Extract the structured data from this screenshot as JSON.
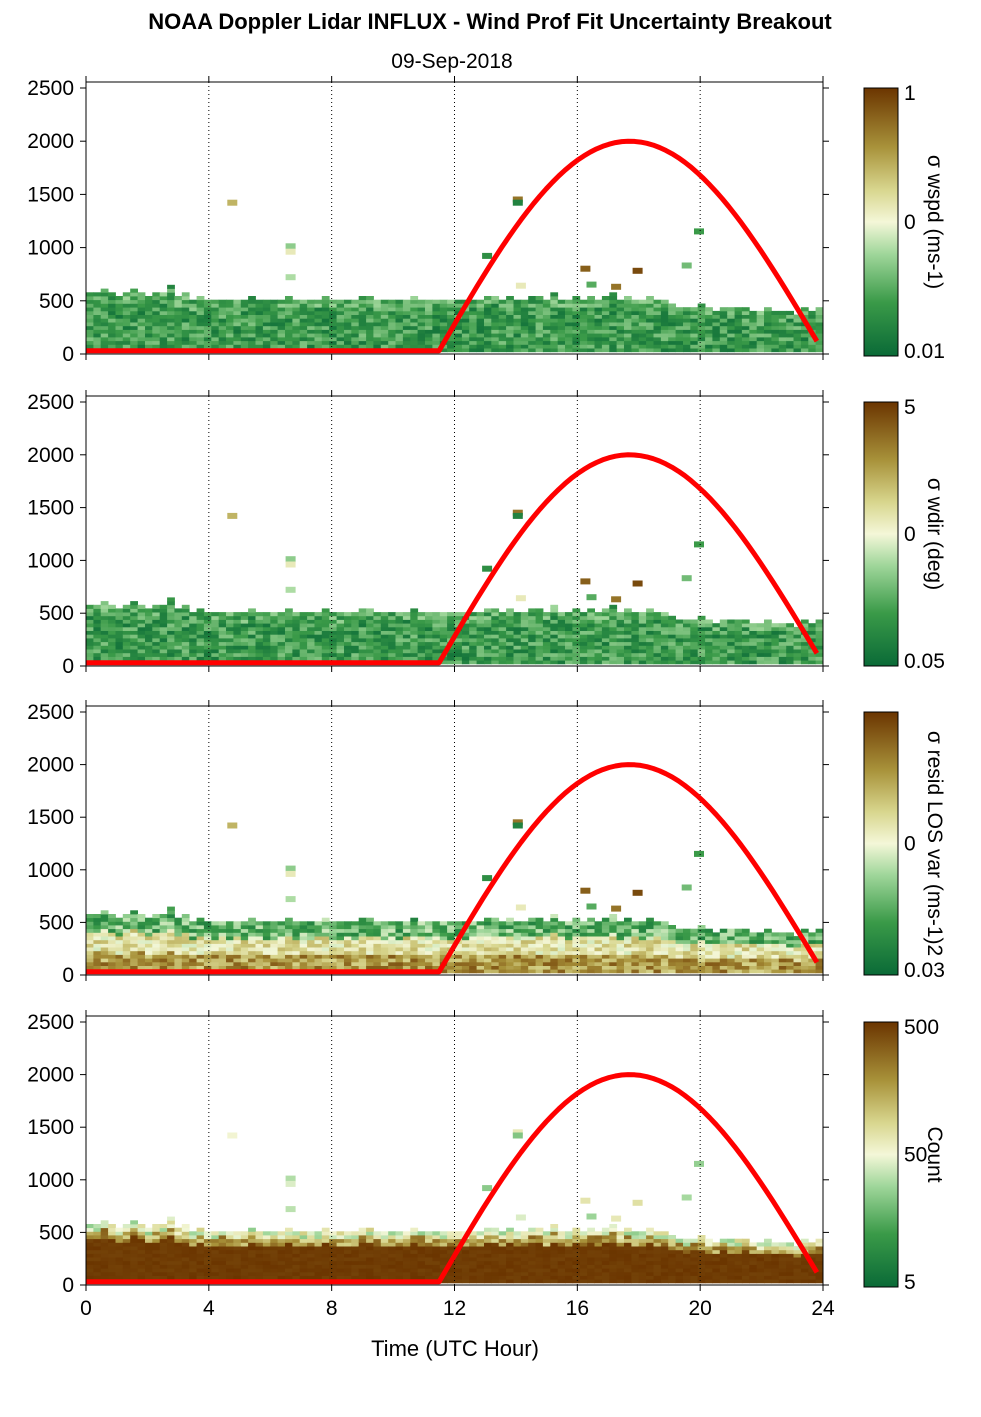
{
  "title": "NOAA Doppler Lidar INFLUX - Wind Prof Fit Uncertainty Breakout",
  "subtitle": "09-Sep-2018",
  "xlabel": "Time (UTC Hour)",
  "colors": {
    "sun_curve": "#ff0000",
    "cmap_low": "#0a6a37",
    "cmap_mid": "#f4f7d8",
    "cmap_high": "#6b3500",
    "gridline": "#000000"
  },
  "chart_data": [
    {
      "type": "heatmap",
      "name": "sigma-wspd",
      "xlabel": "Time (UTC Hour)",
      "ylabel": "",
      "xlim": [
        0,
        24
      ],
      "ylim": [
        0,
        2500
      ],
      "xticks": [
        "0",
        "4",
        "8",
        "12",
        "16",
        "20",
        "24"
      ],
      "yticks": [
        "0",
        "500",
        "1000",
        "1500",
        "2000",
        "2500"
      ],
      "grid": "vertical dotted at 4, 8, 12, 16, 20, 24",
      "colorbar": {
        "label": "σ wspd (ms-1)",
        "ticks": [
          "1",
          "0",
          "0.01"
        ],
        "scale": "log"
      },
      "profile_top_m": [
        550,
        560,
        580,
        560,
        520,
        530,
        590,
        560,
        520,
        540,
        560,
        600,
        500,
        540,
        470,
        500,
        480,
        460,
        490,
        470,
        480,
        460,
        520,
        480,
        470,
        460,
        480,
        500,
        470,
        470,
        460,
        480,
        500,
        470,
        460,
        480,
        460,
        500,
        520,
        480,
        470,
        490,
        460,
        480,
        500,
        490,
        470,
        480,
        470,
        460,
        480,
        470,
        490,
        480,
        500,
        520,
        480,
        500,
        470,
        480,
        500,
        520,
        490,
        530,
        480,
        460,
        500,
        480,
        510,
        490,
        500,
        530,
        470,
        500,
        480,
        460,
        500,
        480,
        470,
        440,
        420,
        400,
        420,
        440,
        400,
        380,
        420,
        400,
        400,
        420,
        380,
        360,
        400,
        380,
        380,
        360,
        350,
        400,
        380,
        400
      ],
      "sun_elevation_curve": {
        "start_hour": 11.5,
        "peak_hour": 17.7,
        "peak_m": 2000,
        "end_hour": 23.8,
        "end_m": 120,
        "base_m": 30
      }
    },
    {
      "type": "heatmap",
      "name": "sigma-wdir",
      "xlabel": "Time (UTC Hour)",
      "ylabel": "",
      "xlim": [
        0,
        24
      ],
      "ylim": [
        0,
        2500
      ],
      "xticks": [
        "0",
        "4",
        "8",
        "12",
        "16",
        "20",
        "24"
      ],
      "yticks": [
        "0",
        "500",
        "1000",
        "1500",
        "2000",
        "2500"
      ],
      "grid": "vertical dotted at 4, 8, 12, 16, 20, 24",
      "colorbar": {
        "label": "σ wdir (deg)",
        "ticks": [
          "5",
          "0",
          "0.05"
        ],
        "scale": "log"
      }
    },
    {
      "type": "heatmap",
      "name": "sigma-resid-los-var",
      "xlabel": "Time (UTC Hour)",
      "ylabel": "",
      "xlim": [
        0,
        24
      ],
      "ylim": [
        0,
        2500
      ],
      "xticks": [
        "0",
        "4",
        "8",
        "12",
        "16",
        "20",
        "24"
      ],
      "yticks": [
        "0",
        "500",
        "1000",
        "1500",
        "2000",
        "2500"
      ],
      "grid": "vertical dotted at 4, 8, 12, 16, 20, 24",
      "colorbar": {
        "label": "σ resid LOS var (ms-1)2",
        "ticks": [
          "0",
          "0.03"
        ],
        "scale": "log"
      }
    },
    {
      "type": "heatmap",
      "name": "count",
      "xlabel": "Time (UTC Hour)",
      "ylabel": "",
      "xlim": [
        0,
        24
      ],
      "ylim": [
        0,
        2500
      ],
      "xticks": [
        "0",
        "4",
        "8",
        "12",
        "16",
        "20",
        "24"
      ],
      "yticks": [
        "0",
        "500",
        "1000",
        "1500",
        "2000",
        "2500"
      ],
      "grid": "vertical dotted at 4, 8, 12, 16, 20, 24",
      "colorbar": {
        "label": "Count",
        "ticks": [
          "500",
          "50",
          "5"
        ],
        "scale": "log"
      }
    }
  ]
}
